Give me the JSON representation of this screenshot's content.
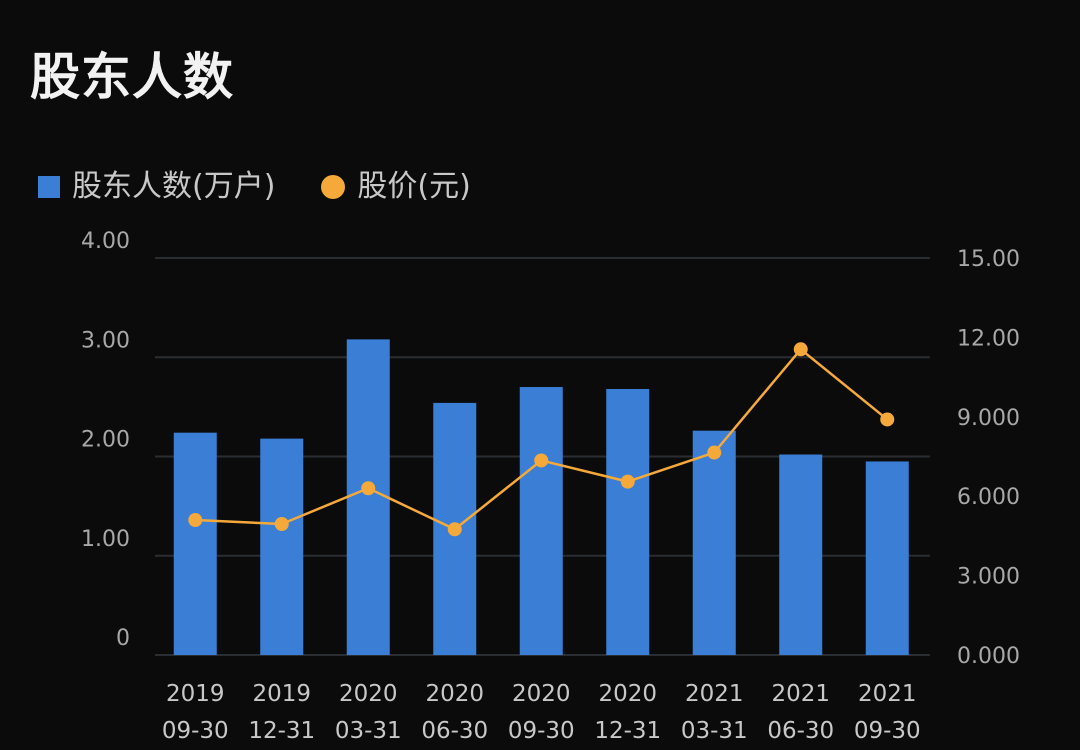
{
  "page": {
    "title": "股东人数"
  },
  "legend": {
    "bar_label": "股东人数(万户)",
    "line_label": "股价(元)"
  },
  "colors": {
    "bar": "#3a7fd5",
    "line": "#f5a93a",
    "grid": "#2a2d31",
    "background": "#0b0b0b"
  },
  "chart_data": {
    "type": "bar",
    "title": "股东人数",
    "categories": [
      [
        "2019",
        "09-30"
      ],
      [
        "2019",
        "12-31"
      ],
      [
        "2020",
        "03-31"
      ],
      [
        "2020",
        "06-30"
      ],
      [
        "2020",
        "09-30"
      ],
      [
        "2020",
        "12-31"
      ],
      [
        "2021",
        "03-31"
      ],
      [
        "2021",
        "06-30"
      ],
      [
        "2021",
        "09-30"
      ]
    ],
    "series": [
      {
        "name": "股东人数(万户)",
        "type": "bar",
        "axis": "left",
        "values": [
          2.24,
          2.18,
          3.18,
          2.54,
          2.7,
          2.68,
          2.26,
          2.02,
          1.95
        ]
      },
      {
        "name": "股价(元)",
        "type": "line",
        "axis": "right",
        "values": [
          5.1,
          4.95,
          6.3,
          4.75,
          7.35,
          6.55,
          7.65,
          11.55,
          8.9
        ]
      }
    ],
    "y_left": {
      "range": [
        0,
        4
      ],
      "ticks": [
        0,
        1,
        2,
        3,
        4
      ],
      "tick_labels": [
        "0",
        "1.00",
        "2.00",
        "3.00",
        "4.00"
      ]
    },
    "y_right": {
      "range": [
        0,
        15
      ],
      "ticks": [
        0,
        3,
        6,
        9,
        12,
        15
      ],
      "tick_labels": [
        "0.000",
        "3.000",
        "6.000",
        "9.000",
        "12.00",
        "15.00"
      ]
    },
    "grid": true,
    "legend_position": "top-left"
  }
}
